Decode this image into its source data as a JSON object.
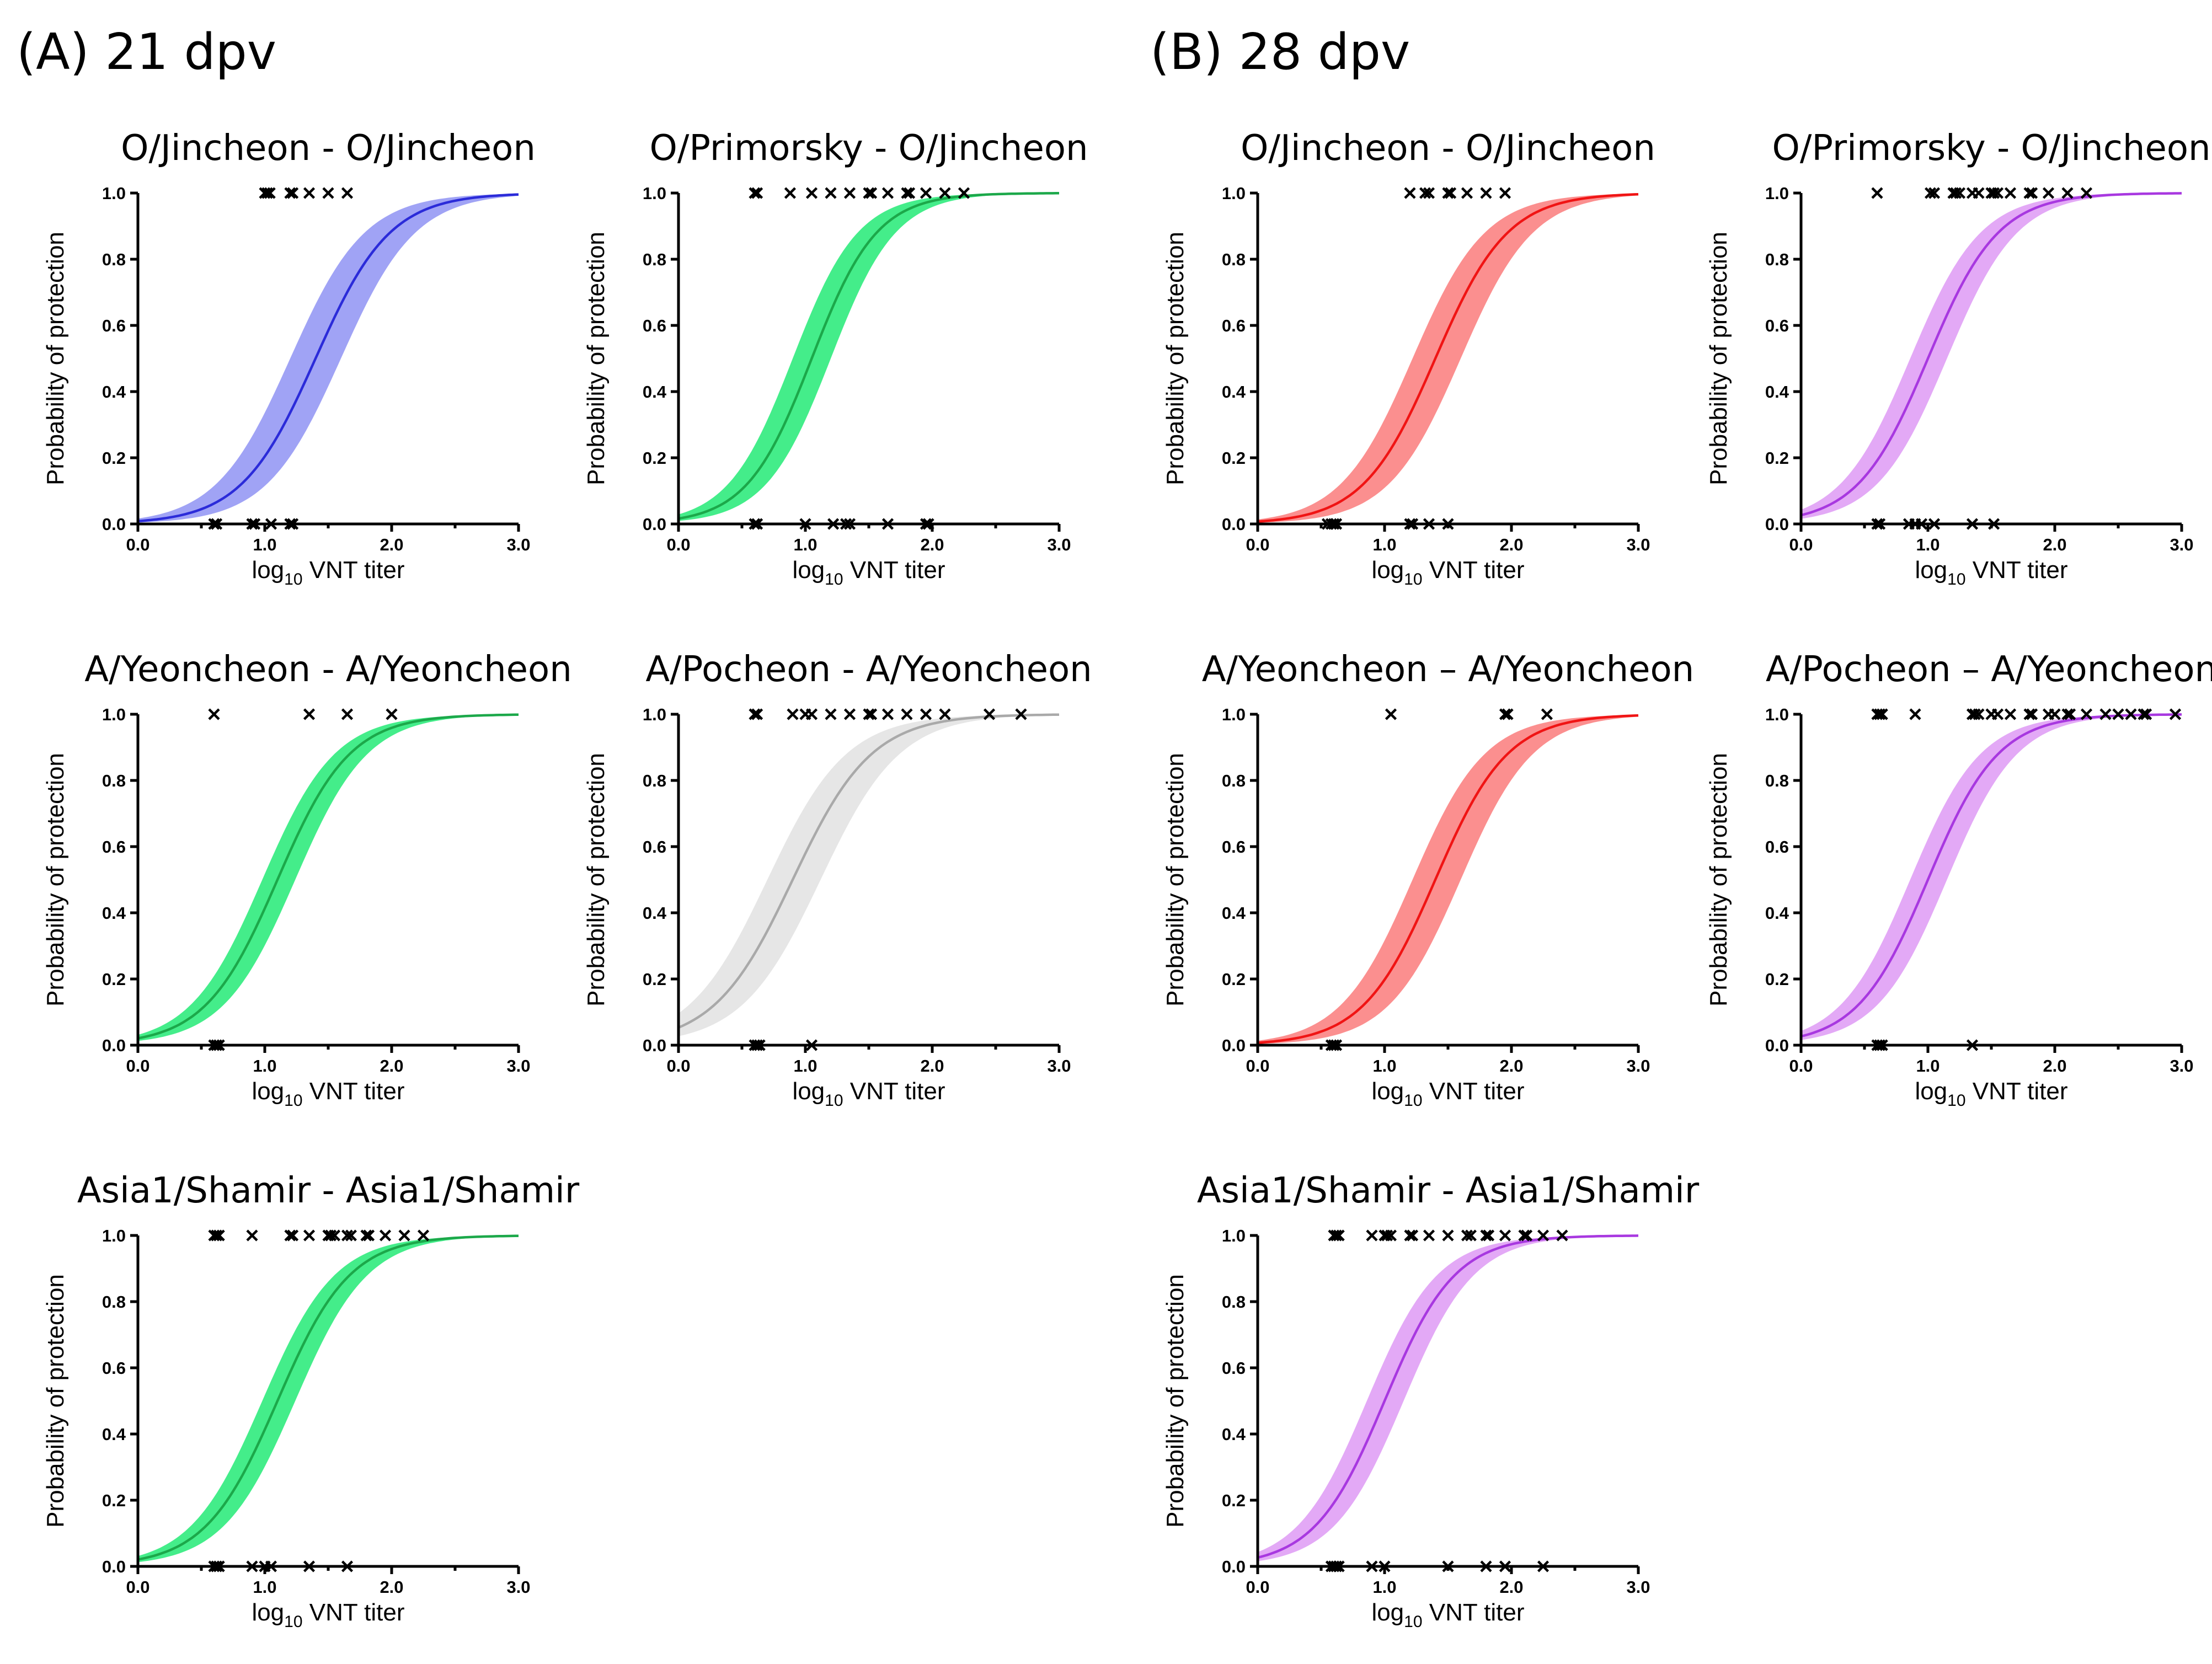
{
  "figure": {
    "section_a": "(A) 21 dpv",
    "section_b": "(B) 28 dpv",
    "colors": {
      "blue": "#2b2bd9",
      "blue_band": "#a0a3f5",
      "green": "#1ca84a",
      "green_band": "#44ed8a",
      "gray": "#a9a9a9",
      "gray_band": "#e6e6e6",
      "red": "#f01414",
      "red_band": "#fb8f8f",
      "purple": "#a838e0",
      "purple_band": "#e3a9f6"
    }
  },
  "chart_data": [
    {
      "type": "line",
      "id": "a-o-jincheon",
      "title": "O/Jincheon - O/Jincheon",
      "color": "blue",
      "xlabel_main": "log",
      "xlabel_sub": "10",
      "xlabel_rest": " VNT titer",
      "ylabel": "Probability of protection",
      "xlim": [
        0,
        3
      ],
      "ylim": [
        0,
        1
      ],
      "xticks": [
        "0.0",
        "1.0",
        "2.0",
        "3.0"
      ],
      "yticks": [
        "0.0",
        "0.2",
        "0.4",
        "0.6",
        "0.8",
        "1.0"
      ],
      "curve": {
        "midpoint": 1.4,
        "slope": 3.4,
        "band_lower_midpoint": 1.2,
        "band_upper_midpoint": 1.6
      },
      "protected_x": [
        1.0,
        1.02,
        1.04,
        1.2,
        1.22,
        1.35,
        1.5,
        1.65
      ],
      "unprotected_x": [
        0.6,
        0.62,
        0.9,
        0.92,
        1.05,
        1.2,
        1.22
      ]
    },
    {
      "type": "line",
      "id": "a-o-primorsky",
      "title": "O/Primorsky - O/Jincheon",
      "color": "green",
      "xlabel_main": "log",
      "xlabel_sub": "10",
      "xlabel_rest": " VNT titer",
      "ylabel": "Probability of protection",
      "xlim": [
        0,
        3
      ],
      "ylim": [
        0,
        1
      ],
      "xticks": [
        "0.0",
        "1.0",
        "2.0",
        "3.0"
      ],
      "yticks": [
        "0.0",
        "0.2",
        "0.4",
        "0.6",
        "0.8",
        "1.0"
      ],
      "curve": {
        "midpoint": 1.05,
        "slope": 3.9,
        "band_lower_midpoint": 0.9,
        "band_upper_midpoint": 1.2
      },
      "protected_x": [
        0.6,
        0.62,
        0.88,
        1.05,
        1.2,
        1.35,
        1.5,
        1.52,
        1.65,
        1.8,
        1.82,
        1.95,
        2.1,
        2.25
      ],
      "unprotected_x": [
        0.6,
        0.62,
        1.0,
        1.22,
        1.32,
        1.35,
        1.65,
        1.95,
        1.97
      ]
    },
    {
      "type": "line",
      "id": "b-o-jincheon",
      "title": "O/Jincheon - O/Jincheon",
      "color": "red",
      "xlabel_main": "log",
      "xlabel_sub": "10",
      "xlabel_rest": " VNT titer",
      "ylabel": "Probability of protection",
      "xlim": [
        0,
        3
      ],
      "ylim": [
        0,
        1
      ],
      "xticks": [
        "0.0",
        "1.0",
        "2.0",
        "3.0"
      ],
      "yticks": [
        "0.0",
        "0.2",
        "0.4",
        "0.6",
        "0.8",
        "1.0"
      ],
      "curve": {
        "midpoint": 1.4,
        "slope": 3.5,
        "band_lower_midpoint": 1.22,
        "band_upper_midpoint": 1.6
      },
      "protected_x": [
        1.2,
        1.32,
        1.35,
        1.5,
        1.52,
        1.65,
        1.8,
        1.95
      ],
      "unprotected_x": [
        0.55,
        0.58,
        0.6,
        0.62,
        1.2,
        1.22,
        1.35,
        1.5
      ]
    },
    {
      "type": "line",
      "id": "b-o-primorsky",
      "title": "O/Primorsky - O/Jincheon",
      "color": "purple",
      "xlabel_main": "log",
      "xlabel_sub": "10",
      "xlabel_rest": " VNT titer",
      "ylabel": "Probability of protection",
      "xlim": [
        0,
        3
      ],
      "ylim": [
        0,
        1
      ],
      "xticks": [
        "0.0",
        "1.0",
        "2.0",
        "3.0"
      ],
      "yticks": [
        "0.0",
        "0.2",
        "0.4",
        "0.6",
        "0.8",
        "1.0"
      ],
      "curve": {
        "midpoint": 1.0,
        "slope": 3.6,
        "band_lower_midpoint": 0.86,
        "band_upper_midpoint": 1.15
      },
      "protected_x": [
        0.6,
        1.02,
        1.05,
        1.2,
        1.22,
        1.25,
        1.35,
        1.4,
        1.5,
        1.52,
        1.55,
        1.65,
        1.8,
        1.82,
        1.95,
        2.1,
        2.25
      ],
      "unprotected_x": [
        0.6,
        0.62,
        0.85,
        0.9,
        0.95,
        1.05,
        1.35,
        1.52
      ]
    },
    {
      "type": "line",
      "id": "a-a-yeoncheon",
      "title": "A/Yeoncheon - A/Yeoncheon",
      "color": "green",
      "xlabel_main": "log",
      "xlabel_sub": "10",
      "xlabel_rest": " VNT titer",
      "ylabel": "Probability of protection",
      "xlim": [
        0,
        3
      ],
      "ylim": [
        0,
        1
      ],
      "xticks": [
        "0.0",
        "1.0",
        "2.0",
        "3.0"
      ],
      "yticks": [
        "0.0",
        "0.2",
        "0.4",
        "0.6",
        "0.8",
        "1.0"
      ],
      "curve": {
        "midpoint": 1.1,
        "slope": 3.5,
        "band_lower_midpoint": 0.98,
        "band_upper_midpoint": 1.24
      },
      "protected_x": [
        0.6,
        1.35,
        1.65,
        2.0
      ],
      "unprotected_x": [
        0.6,
        0.62,
        0.64
      ]
    },
    {
      "type": "line",
      "id": "a-a-pocheon",
      "title": "A/Pocheon - A/Yeoncheon",
      "color": "gray",
      "xlabel_main": "log",
      "xlabel_sub": "10",
      "xlabel_rest": " VNT titer",
      "ylabel": "Probability of protection",
      "xlim": [
        0,
        3
      ],
      "ylim": [
        0,
        1
      ],
      "xticks": [
        "0.0",
        "1.0",
        "2.0",
        "3.0"
      ],
      "yticks": [
        "0.0",
        "0.2",
        "0.4",
        "0.6",
        "0.8",
        "1.0"
      ],
      "curve": {
        "midpoint": 0.9,
        "slope": 3.2,
        "band_lower_midpoint": 0.7,
        "band_upper_midpoint": 1.12
      },
      "protected_x": [
        0.6,
        0.62,
        0.9,
        1.0,
        1.05,
        1.2,
        1.35,
        1.5,
        1.52,
        1.65,
        1.8,
        1.95,
        2.1,
        2.45,
        2.7
      ],
      "unprotected_x": [
        0.6,
        0.62,
        0.64,
        1.05
      ]
    },
    {
      "type": "line",
      "id": "b-a-yeoncheon",
      "title": "A/Yeoncheon – A/Yeoncheon",
      "color": "red",
      "xlabel_main": "log",
      "xlabel_sub": "10",
      "xlabel_rest": " VNT titer",
      "ylabel": "Probability of protection",
      "xlim": [
        0,
        3
      ],
      "ylim": [
        0,
        1
      ],
      "xticks": [
        "0.0",
        "1.0",
        "2.0",
        "3.0"
      ],
      "yticks": [
        "0.0",
        "0.2",
        "0.4",
        "0.6",
        "0.8",
        "1.0"
      ],
      "curve": {
        "midpoint": 1.4,
        "slope": 3.5,
        "band_lower_midpoint": 1.22,
        "band_upper_midpoint": 1.6
      },
      "protected_x": [
        1.05,
        1.95,
        1.97,
        2.28
      ],
      "unprotected_x": [
        0.58,
        0.6,
        0.62
      ]
    },
    {
      "type": "line",
      "id": "b-a-pocheon",
      "title": "A/Pocheon – A/Yeoncheon",
      "color": "purple",
      "xlabel_main": "log",
      "xlabel_sub": "10",
      "xlabel_rest": " VNT titer",
      "ylabel": "Probability of protection",
      "xlim": [
        0,
        3
      ],
      "ylim": [
        0,
        1
      ],
      "xticks": [
        "0.0",
        "1.0",
        "2.0",
        "3.0"
      ],
      "yticks": [
        "0.0",
        "0.2",
        "0.4",
        "0.6",
        "0.8",
        "1.0"
      ],
      "curve": {
        "midpoint": 1.0,
        "slope": 3.6,
        "band_lower_midpoint": 0.86,
        "band_upper_midpoint": 1.15
      },
      "protected_x": [
        0.6,
        0.62,
        0.64,
        0.9,
        1.35,
        1.37,
        1.4,
        1.5,
        1.55,
        1.65,
        1.8,
        1.82,
        1.95,
        2.0,
        2.1,
        2.12,
        2.25,
        2.4,
        2.5,
        2.6,
        2.7,
        2.72,
        2.95
      ],
      "unprotected_x": [
        0.6,
        0.62,
        0.64,
        1.35
      ]
    },
    {
      "type": "line",
      "id": "a-asia1",
      "title": "Asia1/Shamir - Asia1/Shamir",
      "color": "green",
      "xlabel_main": "log",
      "xlabel_sub": "10",
      "xlabel_rest": " VNT titer",
      "ylabel": "Probability of protection",
      "xlim": [
        0,
        3
      ],
      "ylim": [
        0,
        1
      ],
      "xticks": [
        "0.0",
        "1.0",
        "2.0",
        "3.0"
      ],
      "yticks": [
        "0.0",
        "0.2",
        "0.4",
        "0.6",
        "0.8",
        "1.0"
      ],
      "curve": {
        "midpoint": 1.1,
        "slope": 3.5,
        "band_lower_midpoint": 0.98,
        "band_upper_midpoint": 1.24
      },
      "protected_x": [
        0.6,
        0.62,
        0.64,
        0.9,
        1.2,
        1.22,
        1.35,
        1.5,
        1.52,
        1.55,
        1.65,
        1.68,
        1.8,
        1.82,
        1.95,
        2.1,
        2.25
      ],
      "unprotected_x": [
        0.6,
        0.62,
        0.64,
        0.9,
        1.0,
        1.05,
        1.35,
        1.65
      ]
    },
    {
      "type": "line",
      "id": "b-asia1",
      "title": "Asia1/Shamir - Asia1/Shamir",
      "color": "purple",
      "xlabel_main": "log",
      "xlabel_sub": "10",
      "xlabel_rest": " VNT titer",
      "ylabel": "Probability of protection",
      "xlim": [
        0,
        3
      ],
      "ylim": [
        0,
        1
      ],
      "xticks": [
        "0.0",
        "1.0",
        "2.0",
        "3.0"
      ],
      "yticks": [
        "0.0",
        "0.2",
        "0.4",
        "0.6",
        "0.8",
        "1.0"
      ],
      "curve": {
        "midpoint": 1.0,
        "slope": 3.6,
        "band_lower_midpoint": 0.86,
        "band_upper_midpoint": 1.15
      },
      "protected_x": [
        0.6,
        0.62,
        0.64,
        0.9,
        1.0,
        1.02,
        1.05,
        1.2,
        1.22,
        1.35,
        1.5,
        1.65,
        1.68,
        1.8,
        1.82,
        1.95,
        2.1,
        2.12,
        2.25,
        2.4
      ],
      "unprotected_x": [
        0.58,
        0.6,
        0.62,
        0.64,
        0.9,
        1.0,
        1.5,
        1.8,
        1.95,
        2.25
      ]
    }
  ]
}
